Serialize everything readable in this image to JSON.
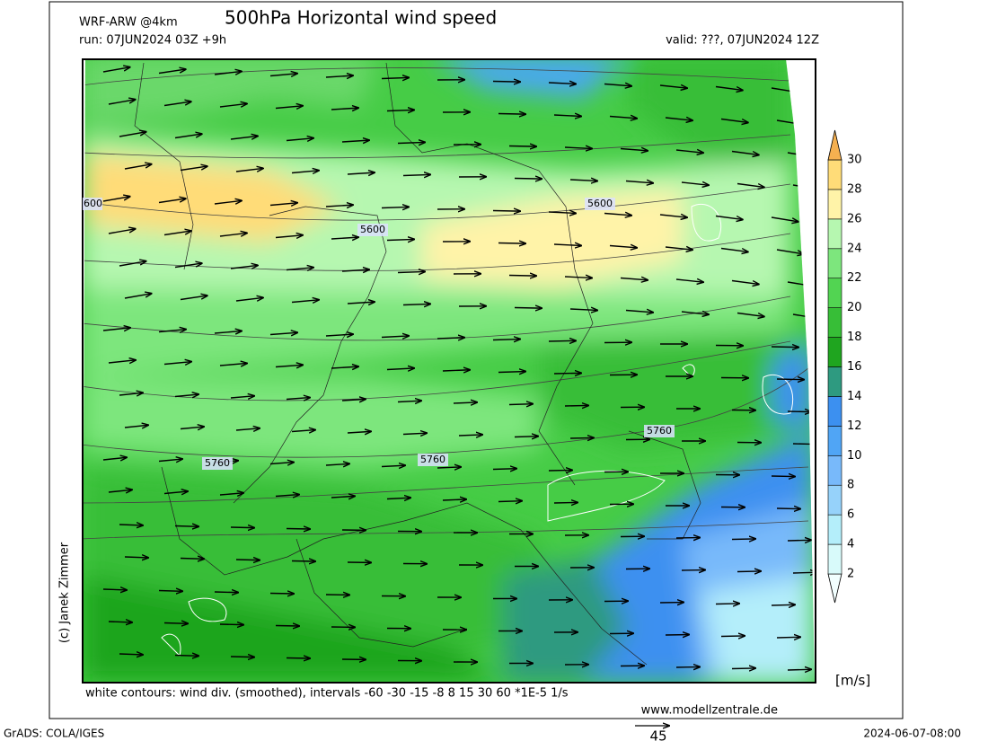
{
  "header": {
    "model": "WRF-ARW @4km",
    "title": "500hPa Horizontal wind speed",
    "run": "run: 07JUN2024 03Z +9h",
    "valid": "valid: ???, 07JUN2024 12Z"
  },
  "map": {
    "contour_labels": [
      "600",
      "5600",
      "5600",
      "5760",
      "5760",
      "5760"
    ],
    "credit": "(c) Janek Zimmer",
    "caption": "white contours: wind div. (smoothed), intervals -60 -30 -15 -8 8 15 30 60 *1E-5 1/s",
    "website": "www.modellzentrale.de"
  },
  "colorbar": {
    "ticks": [
      2,
      4,
      6,
      8,
      10,
      12,
      14,
      16,
      18,
      20,
      22,
      24,
      26,
      28,
      30
    ],
    "colors": [
      "#f2ffff",
      "#d8fafa",
      "#b4eefa",
      "#96d2fa",
      "#78b9fa",
      "#50a5f5",
      "#3c90f0",
      "#2e9a80",
      "#1fa51f",
      "#37be37",
      "#52d452",
      "#7de67d",
      "#b6f7b0",
      "#fff3a8",
      "#ffdc78",
      "#f5b050"
    ],
    "unit": "[m/s]"
  },
  "footer": {
    "software": "GrADS: COLA/IGES",
    "reference_vector": "45",
    "timestamp": "2024-06-07-08:00"
  }
}
